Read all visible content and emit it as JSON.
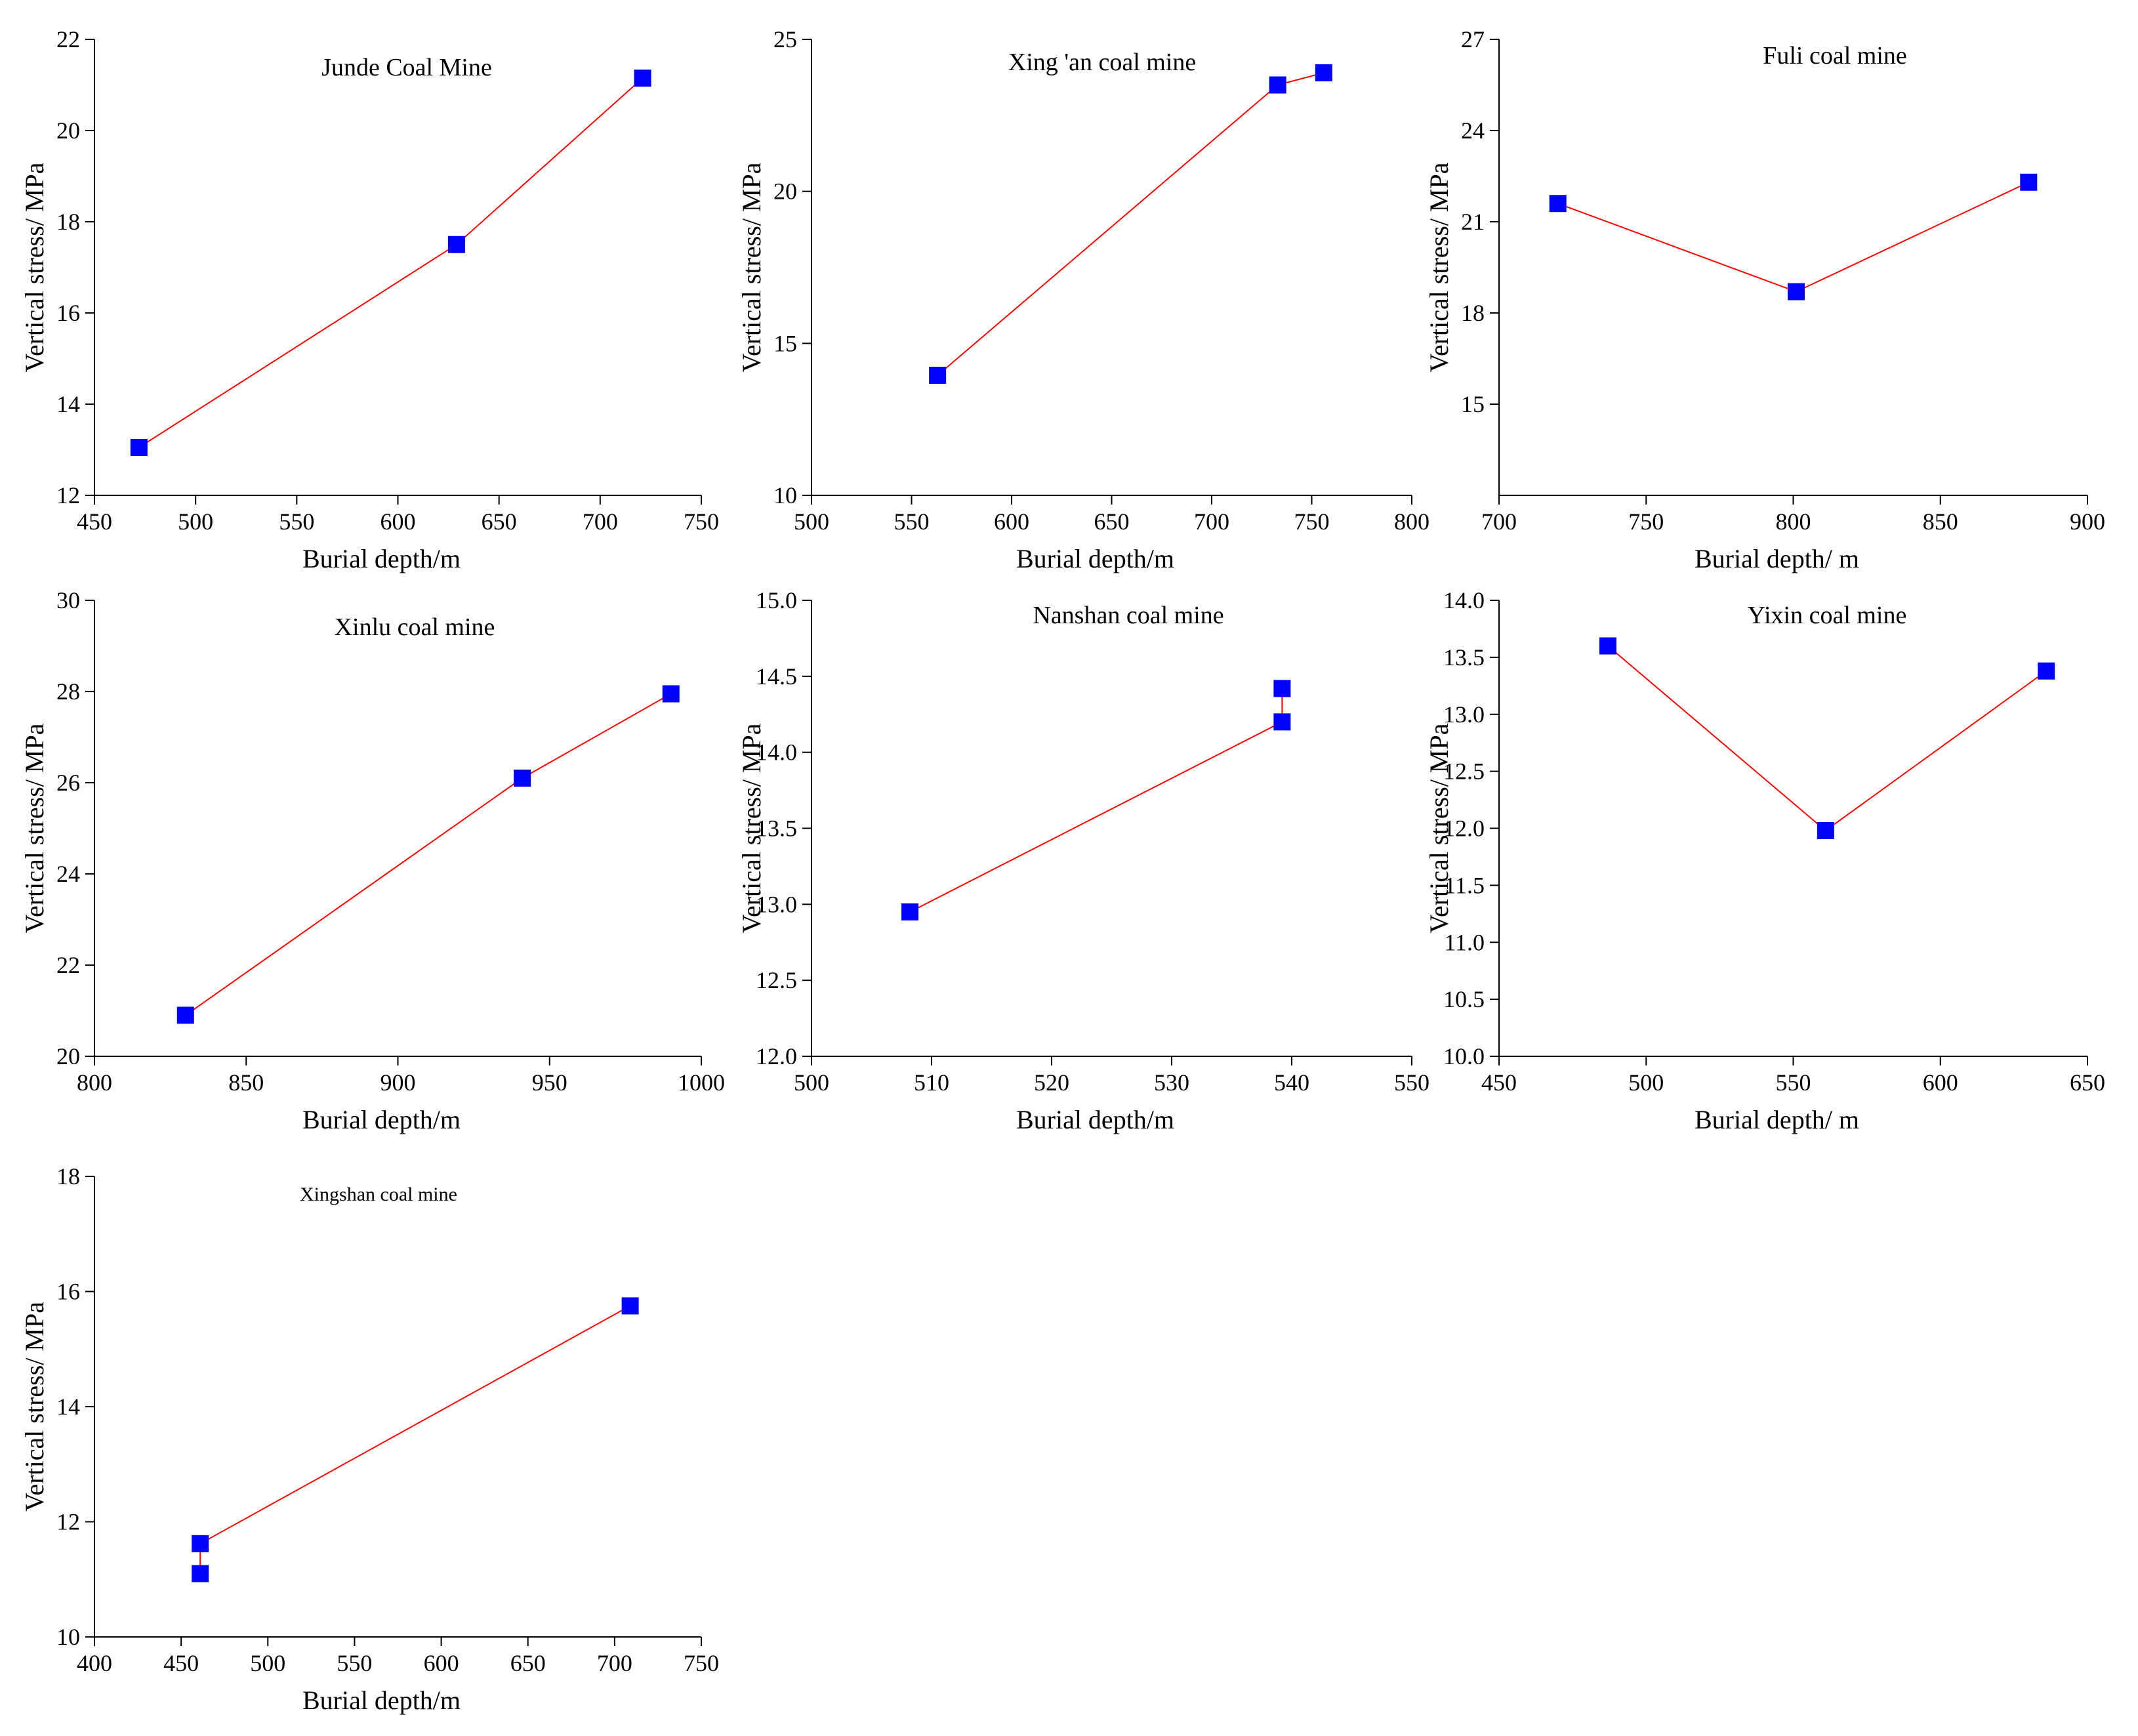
{
  "figure": {
    "background": "#ffffff",
    "series_line_color": "#ff0000",
    "marker_color": "#0000ff"
  },
  "chart_data": [
    {
      "id": "junde",
      "type": "line",
      "title": "Junde Coal Mine",
      "xlabel": "Burial depth/m",
      "ylabel": "Vertical stress/ MPa",
      "xlim": [
        450,
        750
      ],
      "ylim": [
        12,
        22
      ],
      "xticks": [
        "450",
        "500",
        "550",
        "600",
        "650",
        "700",
        "750"
      ],
      "yticks": [
        "12",
        "14",
        "16",
        "18",
        "20",
        "22"
      ],
      "x": [
        472,
        629,
        721
      ],
      "y": [
        13.05,
        17.5,
        21.15
      ]
    },
    {
      "id": "xingan",
      "type": "line",
      "title": "Xing 'an coal mine",
      "xlabel": "Burial depth/m",
      "ylabel": "Vertical stress/ MPa",
      "xlim": [
        500,
        800
      ],
      "ylim": [
        10,
        25
      ],
      "xticks": [
        "500",
        "550",
        "600",
        "650",
        "700",
        "750",
        "800"
      ],
      "yticks": [
        "10",
        "15",
        "20",
        "25"
      ],
      "x": [
        563,
        733,
        756
      ],
      "y": [
        13.95,
        23.5,
        23.9
      ]
    },
    {
      "id": "fuli",
      "type": "line",
      "title": "Fuli coal mine",
      "xlabel": "Burial depth/ m",
      "ylabel": "Vertical stress/ MPa",
      "xlim": [
        700,
        900
      ],
      "ylim": [
        12,
        27
      ],
      "xticks": [
        "700",
        "750",
        "800",
        "850",
        "900"
      ],
      "yticks": [
        "15",
        "18",
        "21",
        "24",
        "27"
      ],
      "x": [
        720,
        801,
        880
      ],
      "y": [
        21.6,
        18.7,
        22.3
      ]
    },
    {
      "id": "xinlu",
      "type": "line",
      "title": "Xinlu coal mine",
      "xlabel": "Burial depth/m",
      "ylabel": "Vertical stress/ MPa",
      "xlim": [
        800,
        1000
      ],
      "ylim": [
        20,
        30
      ],
      "xticks": [
        "800",
        "850",
        "900",
        "950",
        "1000"
      ],
      "yticks": [
        "20",
        "22",
        "24",
        "26",
        "28",
        "30"
      ],
      "x": [
        830,
        941,
        990
      ],
      "y": [
        20.9,
        26.1,
        27.95
      ]
    },
    {
      "id": "nanshan",
      "type": "line",
      "title": "Nanshan coal mine",
      "xlabel": "Burial depth/m",
      "ylabel": "Vertical stress/ MPa",
      "xlim": [
        500,
        550
      ],
      "ylim": [
        12.0,
        15.0
      ],
      "xticks": [
        "500",
        "510",
        "520",
        "530",
        "540",
        "550"
      ],
      "yticks": [
        "12.0",
        "12.5",
        "13.0",
        "13.5",
        "14.0",
        "14.5",
        "15.0"
      ],
      "x": [
        508.2,
        539.2,
        539.2
      ],
      "y": [
        12.95,
        14.2,
        14.42
      ]
    },
    {
      "id": "yixin",
      "type": "line",
      "title": "Yixin coal mine",
      "xlabel": "Burial depth/ m",
      "ylabel": "Vertical stress/ MPa",
      "xlim": [
        450,
        650
      ],
      "ylim": [
        10.0,
        14.0
      ],
      "xticks": [
        "450",
        "500",
        "550",
        "600",
        "650"
      ],
      "yticks": [
        "10.0",
        "10.5",
        "11.0",
        "11.5",
        "12.0",
        "12.5",
        "13.0",
        "13.5",
        "14.0"
      ],
      "x": [
        487,
        561,
        636
      ],
      "y": [
        13.6,
        11.98,
        13.38
      ]
    },
    {
      "id": "xingshan",
      "type": "line",
      "title": "Xingshan coal mine",
      "xlabel": "Burial depth/m",
      "ylabel": "Vertical stress/ MPa",
      "xlim": [
        400,
        750
      ],
      "ylim": [
        10,
        18
      ],
      "xticks": [
        "400",
        "450",
        "500",
        "550",
        "600",
        "650",
        "700",
        "750"
      ],
      "yticks": [
        "10",
        "12",
        "14",
        "16",
        "18"
      ],
      "x": [
        461,
        461,
        709
      ],
      "y": [
        11.1,
        11.62,
        15.75
      ]
    }
  ]
}
